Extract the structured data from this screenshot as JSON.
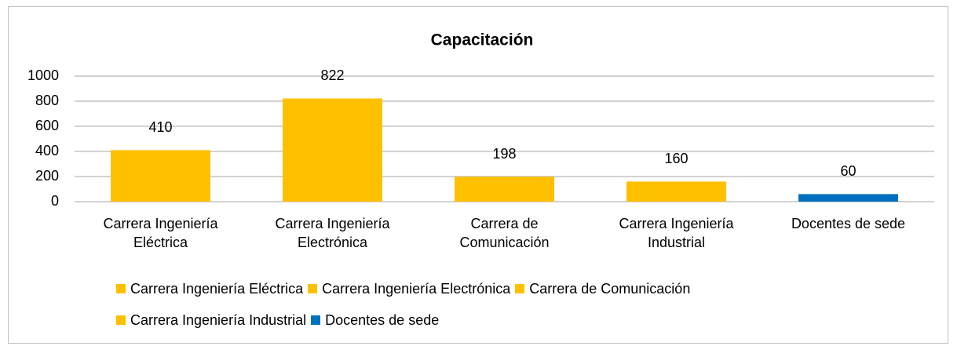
{
  "chart_data": {
    "type": "bar",
    "title": "Capacitación",
    "categories": [
      "Carrera Ingeniería Eléctrica",
      "Carrera Ingeniería Electrónica",
      "Carrera de Comunicación",
      "Carrera Ingeniería Industrial",
      "Docentes de sede"
    ],
    "values": [
      410,
      822,
      198,
      160,
      60
    ],
    "colors": [
      "#ffc000",
      "#ffc000",
      "#ffc000",
      "#ffc000",
      "#0070c0"
    ],
    "ylim": [
      0,
      1000
    ],
    "yticks": [
      0,
      200,
      400,
      600,
      800,
      1000
    ],
    "grid": true,
    "legend": "bottom"
  }
}
